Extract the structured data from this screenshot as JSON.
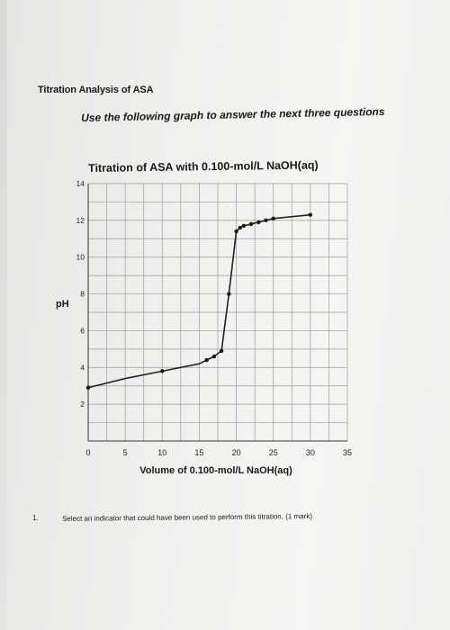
{
  "page": {
    "title": "Titration Analysis of ASA",
    "instruction": "Use the following graph to answer the next three questions",
    "questions": [
      {
        "number": "1.",
        "text": "Select an indicator that could have been used to perform this titration. (1 mark)"
      }
    ]
  },
  "chart_data": {
    "type": "line",
    "title": "Titration of ASA with 0.100-mol/L NaOH(aq)",
    "xlabel": "Volume of 0.100-mol/L NaOH(aq)",
    "ylabel": "pH",
    "xlim": [
      0,
      35
    ],
    "ylim": [
      0,
      14
    ],
    "xticks": [
      0,
      5,
      10,
      15,
      20,
      25,
      30,
      35
    ],
    "yticks": [
      2,
      4,
      6,
      8,
      10,
      12,
      14
    ],
    "grid": true,
    "colors": {
      "line": "#222222",
      "grid": "#9a9a9a",
      "point": "#1a1a1a"
    },
    "series": [
      {
        "x": [
          0,
          5,
          10,
          15,
          16,
          17,
          18,
          19,
          20,
          20.5,
          21,
          22,
          23,
          24,
          25,
          30
        ],
        "y": [
          2.9,
          3.4,
          3.8,
          4.2,
          4.4,
          4.6,
          4.9,
          8.0,
          11.4,
          11.6,
          11.7,
          11.8,
          11.9,
          12.0,
          12.1,
          12.3
        ],
        "markers": [
          true,
          false,
          true,
          false,
          true,
          true,
          true,
          true,
          true,
          true,
          true,
          true,
          true,
          true,
          true,
          true
        ]
      }
    ]
  }
}
